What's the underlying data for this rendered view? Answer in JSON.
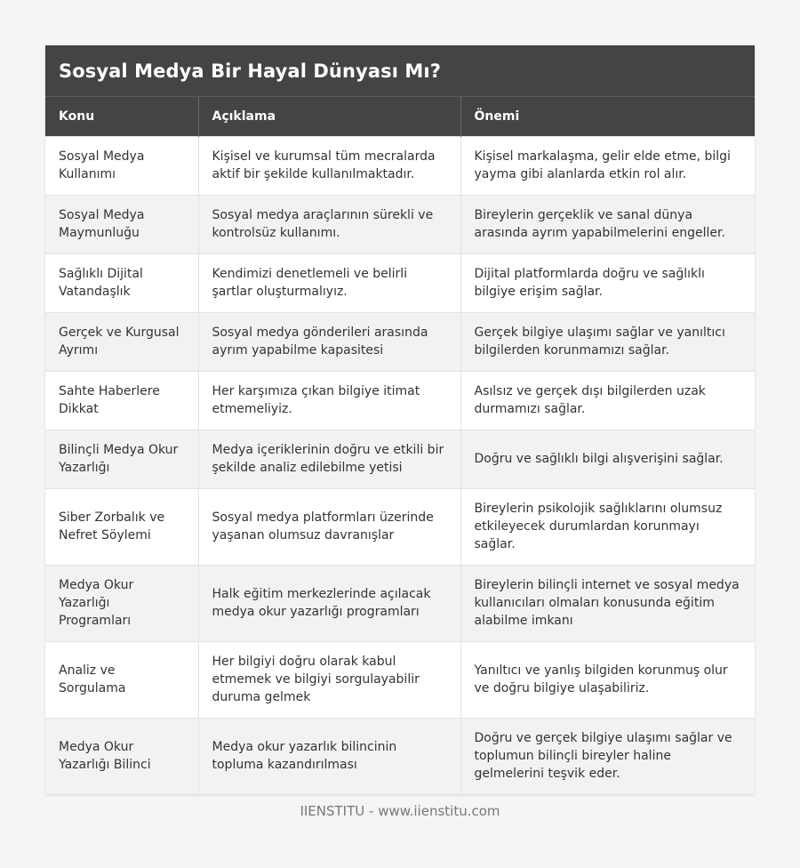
{
  "title": "Sosyal Medya Bir Hayal Dünyası Mı?",
  "columns": [
    "Konu",
    "Açıklama",
    "Önemi"
  ],
  "rows": [
    {
      "konu": "Sosyal Medya Kullanımı",
      "aciklama": "Kişisel ve kurumsal tüm mecralarda aktif bir şekilde kullanılmaktadır.",
      "onemi": "Kişisel markalaşma, gelir elde etme, bilgi yayma gibi alanlarda etkin rol alır."
    },
    {
      "konu": "Sosyal Medya Maymunluğu",
      "aciklama": "Sosyal medya araçlarının sürekli ve kontrolsüz kullanımı.",
      "onemi": "Bireylerin gerçeklik ve sanal dünya arasında ayrım yapabilmelerini engeller."
    },
    {
      "konu": "Sağlıklı Dijital Vatandaşlık",
      "aciklama": "Kendimizi denetlemeli ve belirli şartlar oluşturmalıyız.",
      "onemi": "Dijital platformlarda doğru ve sağlıklı bilgiye erişim sağlar."
    },
    {
      "konu": "Gerçek ve Kurgusal Ayrımı",
      "aciklama": "Sosyal medya gönderileri arasında ayrım yapabilme kapasitesi",
      "onemi": "Gerçek bilgiye ulaşımı sağlar ve yanıltıcı bilgilerden korunmamızı sağlar."
    },
    {
      "konu": "Sahte Haberlere Dikkat",
      "aciklama": "Her karşımıza çıkan bilgiye itimat etmemeliyiz.",
      "onemi": "Asılsız ve gerçek dışı bilgilerden uzak durmamızı sağlar."
    },
    {
      "konu": "Bilinçli Medya Okur Yazarlığı",
      "aciklama": "Medya içeriklerinin doğru ve etkili bir şekilde analiz edilebilme yetisi",
      "onemi": "Doğru ve sağlıklı bilgi alışverişini sağlar."
    },
    {
      "konu": "Siber Zorbalık ve Nefret Söylemi",
      "aciklama": "Sosyal medya platformları üzerinde yaşanan olumsuz davranışlar",
      "onemi": "Bireylerin psikolojik sağlıklarını olumsuz etkileyecek durumlardan korunmayı sağlar."
    },
    {
      "konu": "Medya Okur Yazarlığı Programları",
      "aciklama": "Halk eğitim merkezlerinde açılacak medya okur yazarlığı programları",
      "onemi": "Bireylerin bilinçli internet ve sosyal medya kullanıcıları olmaları konusunda eğitim alabilme imkanı"
    },
    {
      "konu": "Analiz ve Sorgulama",
      "aciklama": "Her bilgiyi doğru olarak kabul etmemek ve bilgiyi sorgulayabilir duruma gelmek",
      "onemi": "Yanıltıcı ve yanlış bilgiden korunmuş olur ve doğru bilgiye ulaşabiliriz."
    },
    {
      "konu": "Medya Okur Yazarlığı Bilinci",
      "aciklama": "Medya okur yazarlık bilincinin topluma kazandırılması",
      "onemi": "Doğru ve gerçek bilgiye ulaşımı sağlar ve toplumun bilinçli bireyler haline gelmelerini teşvik eder."
    }
  ],
  "footer": "IIENSTITU - www.iienstitu.com"
}
